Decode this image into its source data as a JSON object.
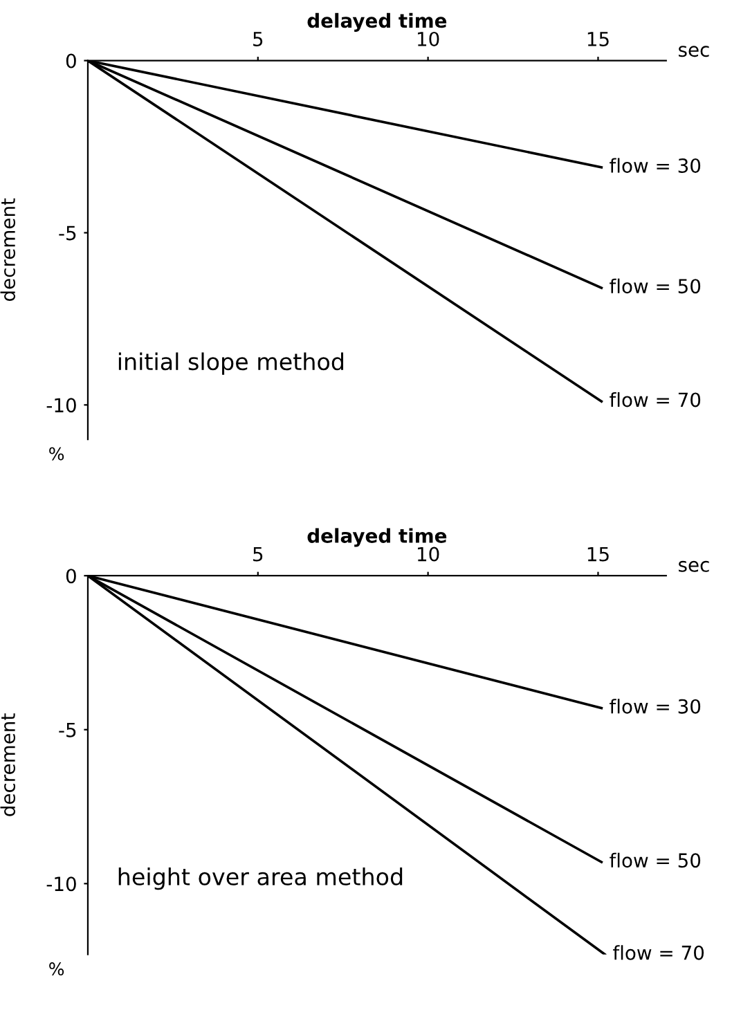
{
  "chart_data": [
    {
      "type": "line",
      "xlabel": "delayed time",
      "ylabel": "decrement",
      "xlim": [
        0,
        17
      ],
      "ylim": [
        -11,
        0
      ],
      "xticks": [
        5,
        10,
        15
      ],
      "yticks": [
        0,
        -5,
        -10
      ],
      "grid": false,
      "legend": false,
      "marker": "none",
      "line_style": "solid",
      "annotations": [
        "initial slope method",
        "sec",
        "%"
      ],
      "series": [
        {
          "name": "flow = 30",
          "color": "#000000",
          "x": [
            0,
            15.1
          ],
          "values": [
            0,
            -3.1
          ]
        },
        {
          "name": "flow = 50",
          "color": "#000000",
          "x": [
            0,
            15.1
          ],
          "values": [
            0,
            -6.6
          ]
        },
        {
          "name": "flow = 70",
          "color": "#000000",
          "x": [
            0,
            15.1
          ],
          "values": [
            0,
            -9.9
          ]
        }
      ]
    },
    {
      "type": "line",
      "xlabel": "delayed time",
      "ylabel": "decrement",
      "xlim": [
        0,
        17
      ],
      "ylim": [
        -12.3,
        0
      ],
      "xticks": [
        5,
        10,
        15
      ],
      "yticks": [
        0,
        -5,
        -10
      ],
      "grid": false,
      "legend": false,
      "marker": "none",
      "line_style": "solid",
      "annotations": [
        "height over area method",
        "sec",
        "%"
      ],
      "series": [
        {
          "name": "flow = 30",
          "color": "#000000",
          "x": [
            0,
            15.1
          ],
          "values": [
            0,
            -4.3
          ]
        },
        {
          "name": "flow = 50",
          "color": "#000000",
          "x": [
            0,
            15.1
          ],
          "values": [
            0,
            -9.3
          ]
        },
        {
          "name": "flow = 70",
          "color": "#000000",
          "x": [
            0,
            15.2
          ],
          "values": [
            0,
            -12.3
          ]
        }
      ]
    }
  ]
}
